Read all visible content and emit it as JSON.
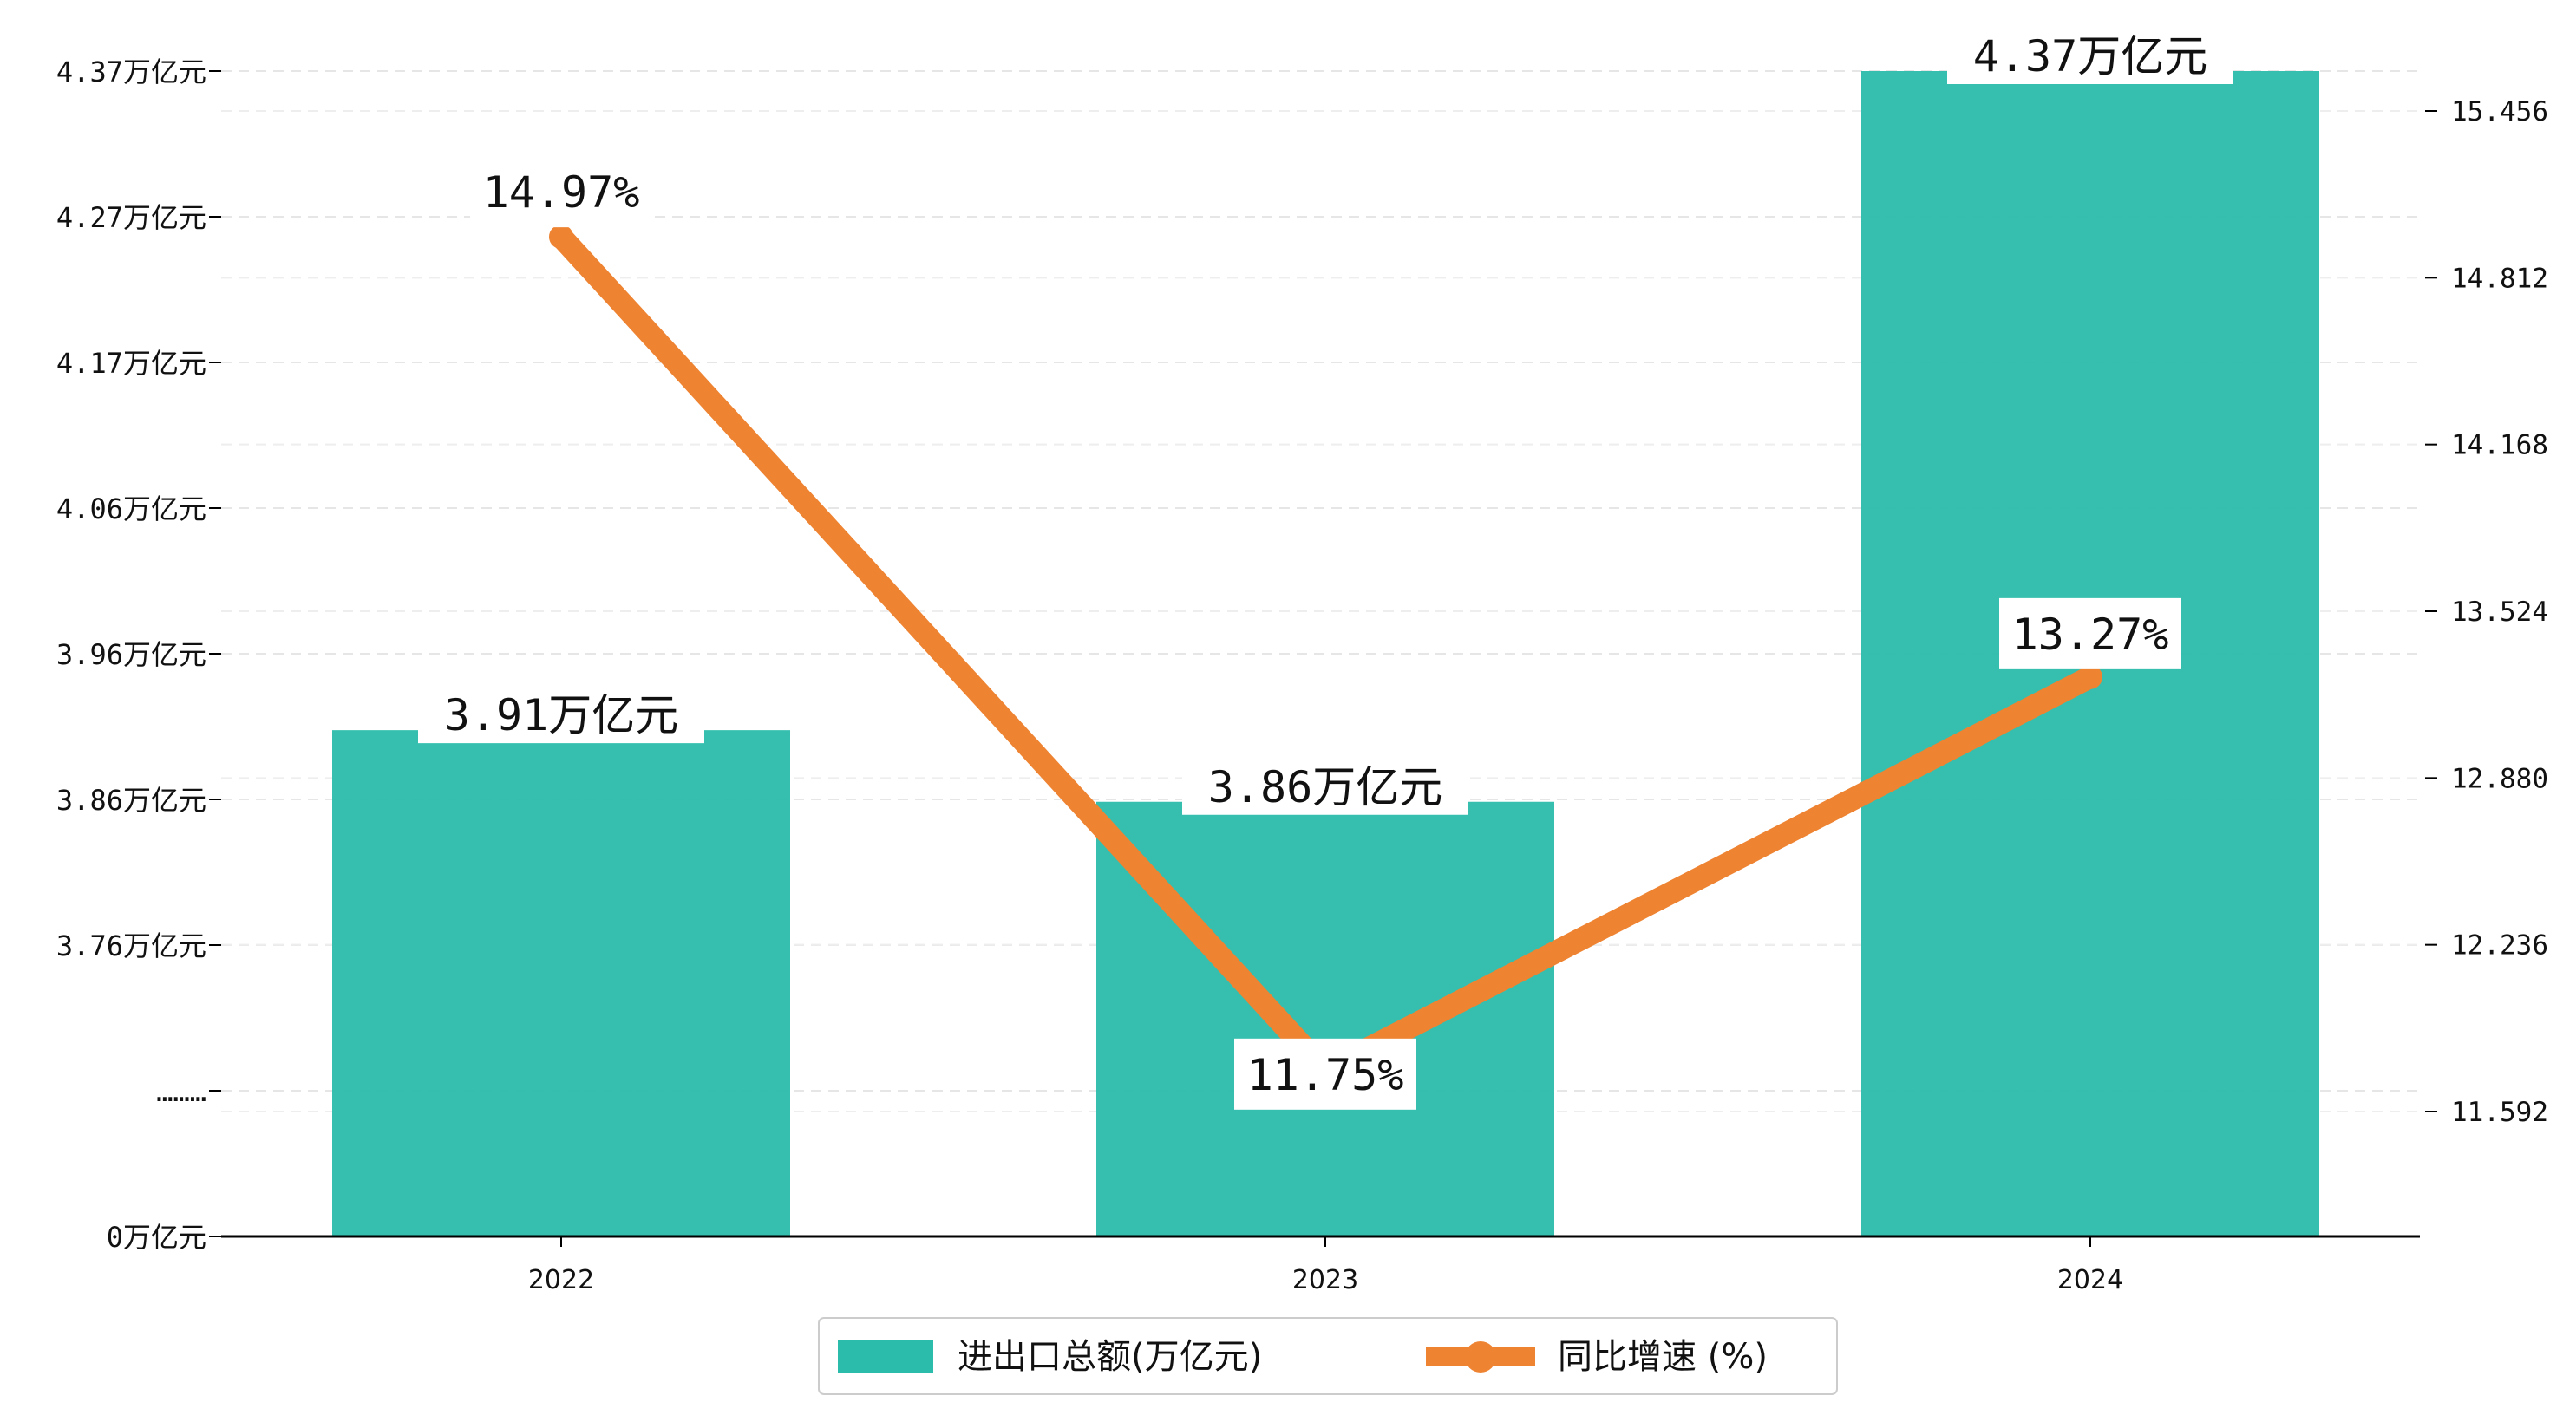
{
  "chart_data": {
    "type": "bar",
    "categories": [
      "2022",
      "2023",
      "2024"
    ],
    "series": [
      {
        "name": "进出口总额(万亿元)",
        "type": "bar",
        "axis": "left",
        "values": [
          3.91,
          3.86,
          4.37
        ],
        "labels": [
          "3.91万亿元",
          "3.86万亿元",
          "4.37万亿元"
        ],
        "color": "#2bbcab"
      },
      {
        "name": "同比增速 (%)",
        "type": "line",
        "axis": "right",
        "values": [
          14.97,
          11.75,
          13.27
        ],
        "labels": [
          "14.97%",
          "11.75%",
          "13.27%"
        ],
        "color": "#ee8332"
      }
    ],
    "y_left": {
      "tick_labels": [
        "0万亿元",
        "………",
        "3.76万亿元",
        "3.86万亿元",
        "3.96万亿元",
        "4.06万亿元",
        "4.17万亿元",
        "4.27万亿元",
        "4.37万亿元"
      ],
      "tick_values": [
        0,
        null,
        3.76,
        3.86,
        3.96,
        4.06,
        4.17,
        4.27,
        4.37
      ],
      "axis_break": true
    },
    "y_right": {
      "tick_labels": [
        "11.592",
        "12.236",
        "12.880",
        "13.524",
        "14.168",
        "14.812",
        "15.456"
      ],
      "tick_values": [
        11.592,
        12.236,
        12.88,
        13.524,
        14.168,
        14.812,
        15.456
      ]
    },
    "grid": true,
    "legend_position": "bottom-center"
  }
}
